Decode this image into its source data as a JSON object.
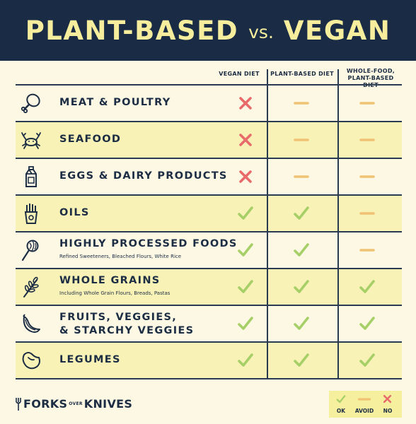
{
  "header": {
    "title_left": "PLANT-BASED",
    "title_mid": "vs.",
    "title_right": "VEGAN"
  },
  "columns": [
    {
      "label": "VEGAN DIET"
    },
    {
      "label": "PLANT-BASED DIET"
    },
    {
      "label": "WHOLE-FOOD, PLANT-BASED DIET"
    }
  ],
  "rows": [
    {
      "label": "MEAT & POULTRY",
      "sub": "",
      "icon": "drumstick-icon",
      "values": [
        "no",
        "avoid",
        "avoid"
      ]
    },
    {
      "label": "SEAFOOD",
      "sub": "",
      "icon": "crab-icon",
      "values": [
        "no",
        "avoid",
        "avoid"
      ]
    },
    {
      "label": "EGGS & DAIRY PRODUCTS",
      "sub": "",
      "icon": "milk-carton-icon",
      "values": [
        "no",
        "avoid",
        "avoid"
      ]
    },
    {
      "label": "OILS",
      "sub": "",
      "icon": "fries-icon",
      "values": [
        "ok",
        "ok",
        "avoid"
      ]
    },
    {
      "label": "HIGHLY PROCESSED FOODS",
      "sub": "Refined Sweeteners, Bleached Flours, White Rice",
      "icon": "lollipop-icon",
      "values": [
        "ok",
        "ok",
        "avoid"
      ]
    },
    {
      "label": "WHOLE GRAINS",
      "sub": "Including Whole Grain Flours, Breads, Pastas",
      "icon": "wheat-icon",
      "values": [
        "ok",
        "ok",
        "ok"
      ]
    },
    {
      "label": "FRUITS, VEGGIES,",
      "label2": "& STARCHY VEGGIES",
      "sub": "",
      "icon": "banana-icon",
      "values": [
        "ok",
        "ok",
        "ok"
      ]
    },
    {
      "label": "LEGUMES",
      "sub": "",
      "icon": "bean-icon",
      "values": [
        "ok",
        "ok",
        "ok"
      ]
    }
  ],
  "legend": {
    "ok": "OK",
    "avoid": "AVOID",
    "no": "NO"
  },
  "logo": {
    "left": "FORKS",
    "mid_top": "OVER",
    "mid_bottom": "",
    "right": "KNIVES"
  },
  "colors": {
    "header_bg": "#192b45",
    "title": "#f6ee9c",
    "check": "#a7cf67",
    "cross": "#e86a6a",
    "dash": "#efc274",
    "highlight": "#f8f2b6"
  }
}
